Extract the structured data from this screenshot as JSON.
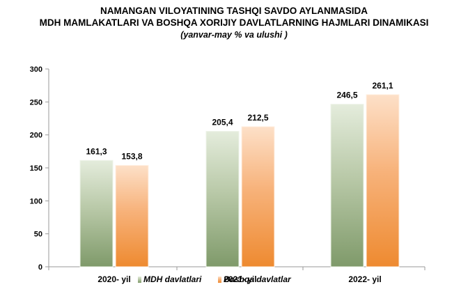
{
  "chart_data": {
    "type": "bar",
    "title": "NAMANGAN VILOYATINING TASHQI SAVDO AYLANMASIDA",
    "title_line2": "MDH MAMLAKATLARI VA BOSHQA XORIJIY DAVLATLARNING HAJMLARI DINAMIKASI",
    "subtitle": "(yanvar-may  % va ulushi )",
    "categories": [
      "2020- yil",
      "2021- yil",
      "2022- yil"
    ],
    "series": [
      {
        "name": "MDH davlatlari",
        "values": [
          161.3,
          205.4,
          246.5
        ],
        "labels": [
          "161,3",
          "205,4",
          "246,5"
        ],
        "color": "#8fa878"
      },
      {
        "name": "Boshqa davlatlar",
        "values": [
          153.8,
          212.5,
          261.1
        ],
        "labels": [
          "153,8",
          "212,5",
          "261,1"
        ],
        "color": "#f0a050"
      }
    ],
    "ylim": [
      0,
      300
    ],
    "yticks": [
      0,
      50,
      100,
      150,
      200,
      250,
      300
    ],
    "grid": false,
    "legend_position": "bottom"
  }
}
